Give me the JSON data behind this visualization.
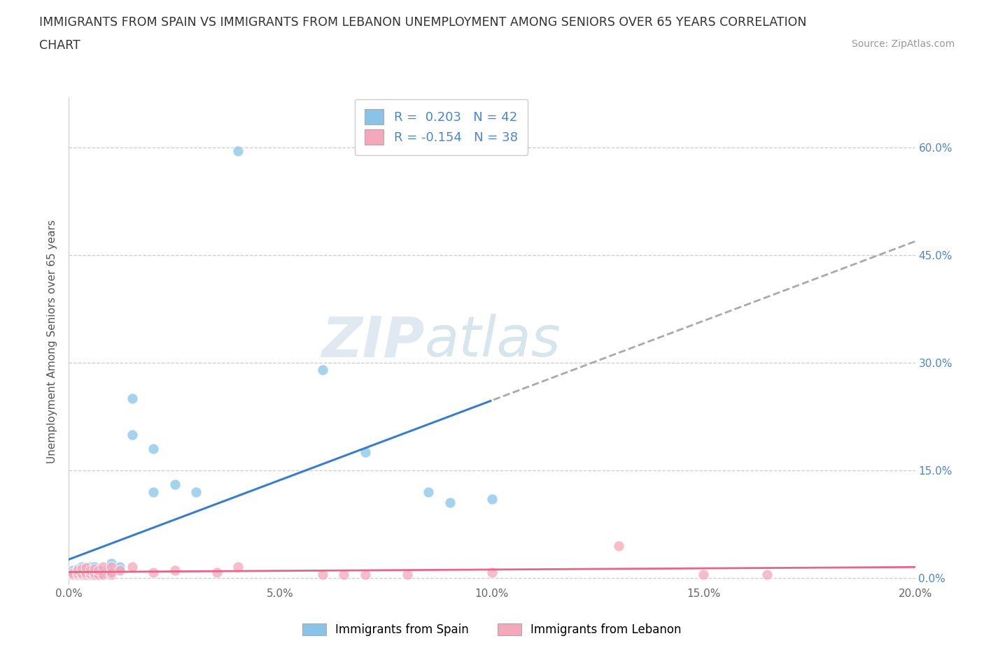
{
  "title_line1": "IMMIGRANTS FROM SPAIN VS IMMIGRANTS FROM LEBANON UNEMPLOYMENT AMONG SENIORS OVER 65 YEARS CORRELATION",
  "title_line2": "CHART",
  "source": "Source: ZipAtlas.com",
  "ylabel": "Unemployment Among Seniors over 65 years",
  "xlim": [
    0.0,
    0.2
  ],
  "ylim": [
    -0.01,
    0.67
  ],
  "yticks": [
    0.0,
    0.15,
    0.3,
    0.45,
    0.6
  ],
  "ytick_labels_right": [
    "0.0%",
    "15.0%",
    "30.0%",
    "45.0%",
    "60.0%"
  ],
  "xticks": [
    0.0,
    0.05,
    0.1,
    0.15,
    0.2
  ],
  "xtick_labels": [
    "0.0%",
    "5.0%",
    "10.0%",
    "15.0%",
    "20.0%"
  ],
  "spain_color": "#89c4e8",
  "lebanon_color": "#f4a8bc",
  "spain_R": 0.203,
  "spain_N": 42,
  "lebanon_R": -0.154,
  "lebanon_N": 38,
  "spain_line_color": "#3a7ec8",
  "lebanon_line_color": "#e8658a",
  "spain_x": [
    0.001,
    0.001,
    0.002,
    0.002,
    0.002,
    0.003,
    0.003,
    0.003,
    0.003,
    0.003,
    0.004,
    0.004,
    0.004,
    0.004,
    0.005,
    0.005,
    0.005,
    0.005,
    0.005,
    0.005,
    0.006,
    0.006,
    0.006,
    0.006,
    0.007,
    0.007,
    0.008,
    0.009,
    0.01,
    0.012,
    0.015,
    0.015,
    0.02,
    0.02,
    0.025,
    0.03,
    0.04,
    0.06,
    0.07,
    0.085,
    0.09,
    0.1
  ],
  "spain_y": [
    0.005,
    0.01,
    0.005,
    0.007,
    0.012,
    0.005,
    0.006,
    0.008,
    0.01,
    0.015,
    0.005,
    0.007,
    0.01,
    0.012,
    0.005,
    0.006,
    0.007,
    0.008,
    0.01,
    0.015,
    0.005,
    0.007,
    0.01,
    0.015,
    0.005,
    0.01,
    0.008,
    0.01,
    0.02,
    0.015,
    0.2,
    0.25,
    0.12,
    0.18,
    0.13,
    0.12,
    0.595,
    0.29,
    0.175,
    0.12,
    0.105,
    0.11
  ],
  "lebanon_x": [
    0.001,
    0.001,
    0.002,
    0.002,
    0.002,
    0.003,
    0.003,
    0.003,
    0.004,
    0.004,
    0.004,
    0.005,
    0.005,
    0.005,
    0.006,
    0.006,
    0.006,
    0.007,
    0.007,
    0.008,
    0.008,
    0.01,
    0.01,
    0.01,
    0.012,
    0.015,
    0.02,
    0.025,
    0.035,
    0.04,
    0.06,
    0.065,
    0.07,
    0.08,
    0.1,
    0.13,
    0.15,
    0.165
  ],
  "lebanon_y": [
    0.005,
    0.007,
    0.005,
    0.007,
    0.01,
    0.005,
    0.007,
    0.012,
    0.005,
    0.008,
    0.014,
    0.005,
    0.007,
    0.01,
    0.005,
    0.008,
    0.012,
    0.005,
    0.01,
    0.005,
    0.015,
    0.005,
    0.008,
    0.015,
    0.01,
    0.015,
    0.008,
    0.01,
    0.008,
    0.015,
    0.005,
    0.005,
    0.005,
    0.005,
    0.008,
    0.045,
    0.005,
    0.005
  ]
}
